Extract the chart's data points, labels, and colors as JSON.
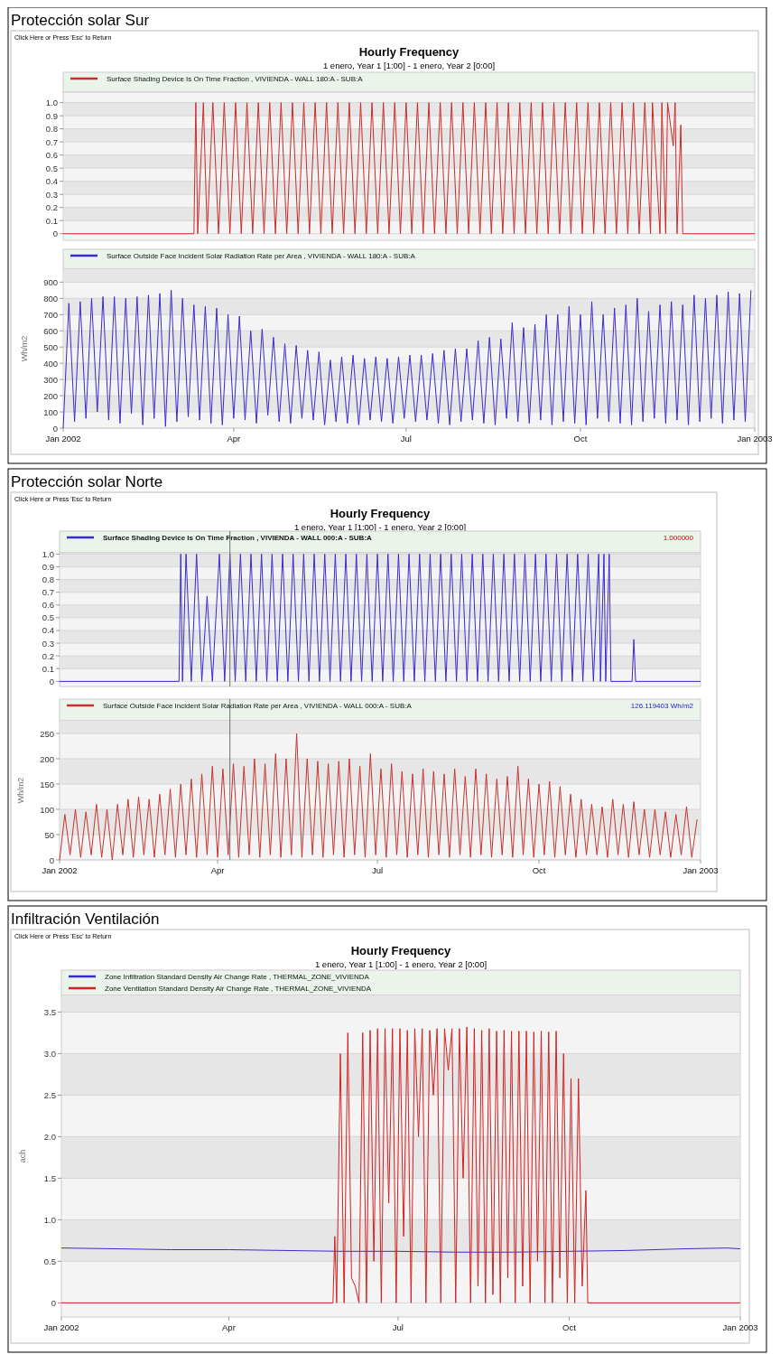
{
  "chart_data": [
    {
      "type": "line",
      "title": "Hourly Frequency",
      "subtitle": "1 enero, Year 1 [1:00] - 1 enero, Year 2 [0:00]",
      "annotations": [
        "Protección solar Sur",
        "Click Here or Press 'Esc' to Return"
      ],
      "legend": "top",
      "grid": "y",
      "tick_labels": "y",
      "xlim": [
        "2002-01-01",
        "2003-01-01"
      ],
      "ylim": [
        -0.05,
        1.08
      ],
      "yticks": [
        0,
        0.1,
        0.2,
        0.3,
        0.4,
        0.5,
        0.6,
        0.7,
        0.8,
        0.9,
        {
          "value": 1,
          "label": "1.0"
        }
      ],
      "series": [
        {
          "name": "Surface Shading Device Is On Time Fraction , VIVIENDA - WALL 180:A - SUB:A",
          "color": "#cc2a2a",
          "x": [
            "2002-01-01",
            "2002-03-11",
            "2002-03-12",
            "2002-03-13",
            "2002-03-16",
            "2002-03-18",
            "2002-03-21",
            "2002-03-24",
            "2002-03-27",
            "2002-03-30",
            "2002-04-02",
            "2002-04-05",
            "2002-04-08",
            "2002-04-11",
            "2002-04-14",
            "2002-04-17",
            "2002-04-20",
            "2002-04-23",
            "2002-04-26",
            "2002-04-29",
            "2002-05-02",
            "2002-05-05",
            "2002-05-08",
            "2002-05-11",
            "2002-05-14",
            "2002-05-17",
            "2002-05-20",
            "2002-05-23",
            "2002-05-26",
            "2002-05-29",
            "2002-06-01",
            "2002-06-04",
            "2002-06-07",
            "2002-06-10",
            "2002-06-13",
            "2002-06-16",
            "2002-06-19",
            "2002-06-22",
            "2002-06-25",
            "2002-06-28",
            "2002-07-01",
            "2002-07-04",
            "2002-07-07",
            "2002-07-10",
            "2002-07-13",
            "2002-07-16",
            "2002-07-19",
            "2002-07-22",
            "2002-07-25",
            "2002-07-28",
            "2002-07-31",
            "2002-08-03",
            "2002-08-06",
            "2002-08-09",
            "2002-08-12",
            "2002-08-15",
            "2002-08-18",
            "2002-08-21",
            "2002-08-24",
            "2002-08-27",
            "2002-08-30",
            "2002-09-02",
            "2002-09-05",
            "2002-09-08",
            "2002-09-11",
            "2002-09-14",
            "2002-09-17",
            "2002-09-20",
            "2002-09-23",
            "2002-09-26",
            "2002-09-29",
            "2002-10-02",
            "2002-10-05",
            "2002-10-08",
            "2002-10-11",
            "2002-10-14",
            "2002-10-17",
            "2002-10-20",
            "2002-10-23",
            "2002-10-26",
            "2002-10-29",
            "2002-11-01",
            "2002-11-04",
            "2002-11-07",
            "2002-11-08",
            "2002-11-12",
            "2002-11-13",
            "2002-11-15",
            "2002-11-16",
            "2002-11-19",
            "2002-11-20",
            "2002-11-21",
            "2002-11-23",
            "2002-11-24",
            "2002-11-25",
            "2003-01-01"
          ],
          "values": [
            0,
            0,
            1,
            0,
            1,
            0,
            1,
            0,
            1,
            0,
            1,
            0,
            1,
            0,
            1,
            0,
            1,
            0,
            1,
            0,
            1,
            0,
            1,
            0,
            1,
            0,
            1,
            0,
            1,
            0,
            1,
            0,
            1,
            0,
            1,
            0,
            1,
            0,
            1,
            0,
            1,
            0,
            1,
            0,
            1,
            0,
            1,
            0,
            1,
            0,
            1,
            0,
            1,
            0,
            1,
            0,
            1,
            0,
            1,
            0,
            1,
            0,
            1,
            0,
            1,
            0,
            1,
            0,
            1,
            0,
            1,
            0,
            1,
            0,
            1,
            0,
            1,
            0,
            1,
            0,
            1,
            0,
            1,
            0,
            1,
            0,
            1,
            0,
            1,
            0.67,
            1,
            0,
            0.83,
            0,
            0,
            0
          ]
        }
      ]
    },
    {
      "type": "line",
      "ylabel": "Wh/m2",
      "legend": "top",
      "grid": "y",
      "xlim": [
        "2002-01-01",
        "2003-01-01"
      ],
      "ylim": [
        0,
        980
      ],
      "yticks": [
        0,
        100,
        200,
        300,
        400,
        500,
        600,
        700,
        800,
        900
      ],
      "xticks": [
        {
          "value": "2002-01-01",
          "label": "Jan 2002"
        },
        {
          "value": "2002-04-01",
          "label": "Apr"
        },
        {
          "value": "2002-07-01",
          "label": "Jul"
        },
        {
          "value": "2002-10-01",
          "label": "Oct"
        },
        {
          "value": "2003-01-01",
          "label": "Jan 2003"
        }
      ],
      "x": [
        "2002-01-01",
        "2002-01-04",
        "2002-01-07",
        "2002-01-10",
        "2002-01-13",
        "2002-01-16",
        "2002-01-19",
        "2002-01-22",
        "2002-01-25",
        "2002-01-28",
        "2002-01-31",
        "2002-02-03",
        "2002-02-06",
        "2002-02-09",
        "2002-02-12",
        "2002-02-15",
        "2002-02-18",
        "2002-02-21",
        "2002-02-24",
        "2002-02-27",
        "2002-03-02",
        "2002-03-05",
        "2002-03-08",
        "2002-03-11",
        "2002-03-14",
        "2002-03-17",
        "2002-03-20",
        "2002-03-23",
        "2002-03-26",
        "2002-03-29",
        "2002-04-01",
        "2002-04-04",
        "2002-04-07",
        "2002-04-10",
        "2002-04-13",
        "2002-04-16",
        "2002-04-19",
        "2002-04-22",
        "2002-04-25",
        "2002-04-28",
        "2002-05-01",
        "2002-05-04",
        "2002-05-07",
        "2002-05-10",
        "2002-05-13",
        "2002-05-16",
        "2002-05-19",
        "2002-05-22",
        "2002-05-25",
        "2002-05-28",
        "2002-05-31",
        "2002-06-03",
        "2002-06-06",
        "2002-06-09",
        "2002-06-12",
        "2002-06-15",
        "2002-06-18",
        "2002-06-21",
        "2002-06-24",
        "2002-06-27",
        "2002-06-30",
        "2002-07-03",
        "2002-07-06",
        "2002-07-09",
        "2002-07-12",
        "2002-07-15",
        "2002-07-18",
        "2002-07-21",
        "2002-07-24",
        "2002-07-27",
        "2002-07-30",
        "2002-08-02",
        "2002-08-05",
        "2002-08-08",
        "2002-08-11",
        "2002-08-14",
        "2002-08-17",
        "2002-08-20",
        "2002-08-23",
        "2002-08-26",
        "2002-08-29",
        "2002-09-01",
        "2002-09-04",
        "2002-09-07",
        "2002-09-10",
        "2002-09-13",
        "2002-09-16",
        "2002-09-19",
        "2002-09-22",
        "2002-09-25",
        "2002-09-28",
        "2002-10-01",
        "2002-10-04",
        "2002-10-07",
        "2002-10-10",
        "2002-10-13",
        "2002-10-16",
        "2002-10-19",
        "2002-10-22",
        "2002-10-25",
        "2002-10-28",
        "2002-10-31",
        "2002-11-03",
        "2002-11-06",
        "2002-11-09",
        "2002-11-12",
        "2002-11-15",
        "2002-11-18",
        "2002-11-21",
        "2002-11-24",
        "2002-11-27",
        "2002-11-30",
        "2002-12-03",
        "2002-12-06",
        "2002-12-09",
        "2002-12-12",
        "2002-12-15",
        "2002-12-18",
        "2002-12-21",
        "2002-12-24",
        "2002-12-27",
        "2002-12-30"
      ],
      "series": [
        {
          "name": "Surface Outside Face Incident Solar Radiation Rate per Area , VIVIENDA - WALL 180:A - SUB:A",
          "color": "#3a2ad0",
          "values": [
            0,
            770,
            40,
            780,
            60,
            800,
            100,
            810,
            50,
            810,
            30,
            800,
            90,
            810,
            20,
            820,
            60,
            830,
            10,
            850,
            40,
            800,
            70,
            760,
            50,
            750,
            30,
            740,
            20,
            700,
            60,
            690,
            50,
            600,
            30,
            610,
            80,
            560,
            40,
            520,
            30,
            510,
            60,
            480,
            50,
            470,
            20,
            420,
            40,
            440,
            30,
            450,
            20,
            430,
            50,
            440,
            40,
            430,
            30,
            440,
            60,
            450,
            40,
            450,
            50,
            460,
            30,
            480,
            20,
            490,
            40,
            490,
            50,
            540,
            30,
            560,
            20,
            550,
            60,
            650,
            40,
            620,
            30,
            640,
            50,
            700,
            20,
            700,
            40,
            750,
            30,
            700,
            20,
            780,
            60,
            700,
            40,
            740,
            30,
            760,
            20,
            800,
            40,
            720,
            60,
            760,
            30,
            780,
            50,
            760,
            20,
            820,
            40,
            800,
            60,
            820,
            30,
            840,
            50,
            830,
            40,
            850
          ]
        }
      ]
    },
    {
      "type": "line",
      "title": "Hourly Frequency",
      "subtitle": "1 enero, Year 1 [1:00] - 1 enero, Year 2 [0:00]",
      "annotations": [
        "Protección solar Norte",
        "Click Here or Press 'Esc' to Return",
        "1.000000"
      ],
      "legend": "top",
      "grid": "y",
      "tick_labels": "y",
      "xlim": [
        "2002-01-01",
        "2003-01-01"
      ],
      "ylim": [
        -0.04,
        1.01
      ],
      "yticks": [
        0,
        0.1,
        0.2,
        0.3,
        0.4,
        0.5,
        0.6,
        0.7,
        0.8,
        0.9,
        {
          "value": 1,
          "label": "1.0"
        }
      ],
      "ref_lines": [
        {
          "axis": "x",
          "value": "2002-04-08",
          "color": "#707070"
        }
      ],
      "series": [
        {
          "name": "Surface Shading Device Is On Time Fraction , VIVIENDA - WALL 000:A - SUB:A",
          "color": "#3a2ad0",
          "x": [
            "2002-01-01",
            "2002-03-10",
            "2002-03-11",
            "2002-03-12",
            "2002-03-14",
            "2002-03-17",
            "2002-03-20",
            "2002-03-23",
            "2002-03-26",
            "2002-03-29",
            "2002-04-02",
            "2002-04-05",
            "2002-04-08",
            "2002-04-11",
            "2002-04-14",
            "2002-04-17",
            "2002-04-20",
            "2002-04-23",
            "2002-04-26",
            "2002-04-29",
            "2002-05-02",
            "2002-05-05",
            "2002-05-08",
            "2002-05-11",
            "2002-05-14",
            "2002-05-17",
            "2002-05-20",
            "2002-05-23",
            "2002-05-26",
            "2002-05-29",
            "2002-06-01",
            "2002-06-04",
            "2002-06-07",
            "2002-06-10",
            "2002-06-13",
            "2002-06-16",
            "2002-06-19",
            "2002-06-22",
            "2002-06-25",
            "2002-06-28",
            "2002-07-01",
            "2002-07-04",
            "2002-07-07",
            "2002-07-10",
            "2002-07-13",
            "2002-07-16",
            "2002-07-19",
            "2002-07-22",
            "2002-07-25",
            "2002-07-28",
            "2002-07-31",
            "2002-08-03",
            "2002-08-06",
            "2002-08-09",
            "2002-08-12",
            "2002-08-15",
            "2002-08-18",
            "2002-08-21",
            "2002-08-24",
            "2002-08-27",
            "2002-08-30",
            "2002-09-02",
            "2002-09-05",
            "2002-09-08",
            "2002-09-11",
            "2002-09-14",
            "2002-09-17",
            "2002-09-20",
            "2002-09-23",
            "2002-09-26",
            "2002-09-29",
            "2002-10-02",
            "2002-10-05",
            "2002-10-08",
            "2002-10-11",
            "2002-10-14",
            "2002-10-17",
            "2002-10-20",
            "2002-10-23",
            "2002-10-26",
            "2002-10-29",
            "2002-11-01",
            "2002-11-04",
            "2002-11-05",
            "2002-11-07",
            "2002-11-08",
            "2002-11-10",
            "2002-11-11",
            "2002-11-23",
            "2002-11-24",
            "2002-11-25",
            "2003-01-01"
          ],
          "values": [
            0,
            0,
            1,
            0,
            1,
            0,
            1,
            0,
            0.67,
            0,
            1,
            0,
            1,
            0,
            1,
            0,
            1,
            0,
            1,
            0,
            1,
            0,
            1,
            0,
            1,
            0,
            1,
            0,
            1,
            0,
            1,
            0,
            1,
            0,
            1,
            0,
            1,
            0,
            1,
            0,
            1,
            0,
            1,
            0,
            1,
            0,
            1,
            0,
            1,
            0,
            1,
            0,
            1,
            0,
            1,
            0,
            1,
            0,
            1,
            0,
            1,
            0,
            1,
            0,
            1,
            0,
            1,
            0,
            1,
            0,
            1,
            0,
            1,
            0,
            1,
            0,
            1,
            0,
            1,
            0,
            1,
            0,
            1,
            0,
            1,
            0,
            1,
            0,
            0,
            0.33,
            0,
            0
          ]
        }
      ]
    },
    {
      "type": "line",
      "ylabel": "Wh/m2",
      "legend": "top",
      "grid": "y",
      "annotations": [
        "126.119403 Wh/m2"
      ],
      "xlim": [
        "2002-01-01",
        "2003-01-01"
      ],
      "ylim": [
        0,
        275
      ],
      "yticks": [
        0,
        50,
        100,
        150,
        200,
        250
      ],
      "xticks": [
        {
          "value": "2002-01-01",
          "label": "Jan 2002"
        },
        {
          "value": "2002-04-01",
          "label": "Apr"
        },
        {
          "value": "2002-07-01",
          "label": "Jul"
        },
        {
          "value": "2002-10-01",
          "label": "Oct"
        },
        {
          "value": "2003-01-01",
          "label": "Jan 2003"
        }
      ],
      "ref_lines": [
        {
          "axis": "x",
          "value": "2002-04-08",
          "color": "#707070"
        }
      ],
      "x": [
        "2002-01-01",
        "2002-01-04",
        "2002-01-07",
        "2002-01-10",
        "2002-01-13",
        "2002-01-16",
        "2002-01-19",
        "2002-01-22",
        "2002-01-25",
        "2002-01-28",
        "2002-01-31",
        "2002-02-03",
        "2002-02-06",
        "2002-02-09",
        "2002-02-12",
        "2002-02-15",
        "2002-02-18",
        "2002-02-21",
        "2002-02-24",
        "2002-02-27",
        "2002-03-02",
        "2002-03-05",
        "2002-03-08",
        "2002-03-11",
        "2002-03-14",
        "2002-03-17",
        "2002-03-20",
        "2002-03-23",
        "2002-03-26",
        "2002-03-29",
        "2002-04-01",
        "2002-04-04",
        "2002-04-07",
        "2002-04-10",
        "2002-04-13",
        "2002-04-16",
        "2002-04-19",
        "2002-04-22",
        "2002-04-25",
        "2002-04-28",
        "2002-05-01",
        "2002-05-04",
        "2002-05-07",
        "2002-05-10",
        "2002-05-13",
        "2002-05-16",
        "2002-05-19",
        "2002-05-22",
        "2002-05-25",
        "2002-05-28",
        "2002-05-31",
        "2002-06-03",
        "2002-06-06",
        "2002-06-09",
        "2002-06-12",
        "2002-06-15",
        "2002-06-18",
        "2002-06-21",
        "2002-06-24",
        "2002-06-27",
        "2002-06-30",
        "2002-07-03",
        "2002-07-06",
        "2002-07-09",
        "2002-07-12",
        "2002-07-15",
        "2002-07-18",
        "2002-07-21",
        "2002-07-24",
        "2002-07-27",
        "2002-07-30",
        "2002-08-02",
        "2002-08-05",
        "2002-08-08",
        "2002-08-11",
        "2002-08-14",
        "2002-08-17",
        "2002-08-20",
        "2002-08-23",
        "2002-08-26",
        "2002-08-29",
        "2002-09-01",
        "2002-09-04",
        "2002-09-07",
        "2002-09-10",
        "2002-09-13",
        "2002-09-16",
        "2002-09-19",
        "2002-09-22",
        "2002-09-25",
        "2002-09-28",
        "2002-10-01",
        "2002-10-04",
        "2002-10-07",
        "2002-10-10",
        "2002-10-13",
        "2002-10-16",
        "2002-10-19",
        "2002-10-22",
        "2002-10-25",
        "2002-10-28",
        "2002-10-31",
        "2002-11-03",
        "2002-11-06",
        "2002-11-09",
        "2002-11-12",
        "2002-11-15",
        "2002-11-18",
        "2002-11-21",
        "2002-11-24",
        "2002-11-27",
        "2002-11-30",
        "2002-12-03",
        "2002-12-06",
        "2002-12-09",
        "2002-12-12",
        "2002-12-15",
        "2002-12-18",
        "2002-12-21",
        "2002-12-24",
        "2002-12-27",
        "2002-12-30"
      ],
      "series": [
        {
          "name": "Surface Outside Face Incident Solar Radiation Rate per Area , VIVIENDA - WALL 000:A - SUB:A",
          "color": "#c83232",
          "values": [
            0,
            90,
            10,
            100,
            5,
            95,
            10,
            110,
            5,
            100,
            0,
            110,
            10,
            120,
            5,
            125,
            10,
            120,
            5,
            130,
            10,
            140,
            5,
            150,
            10,
            160,
            5,
            170,
            10,
            185,
            5,
            180,
            10,
            190,
            5,
            185,
            10,
            200,
            5,
            190,
            10,
            210,
            5,
            200,
            10,
            250,
            5,
            200,
            10,
            195,
            5,
            190,
            10,
            195,
            5,
            200,
            10,
            185,
            5,
            210,
            10,
            180,
            5,
            190,
            10,
            175,
            5,
            170,
            10,
            180,
            5,
            175,
            10,
            170,
            5,
            180,
            10,
            165,
            5,
            180,
            10,
            170,
            5,
            160,
            10,
            165,
            5,
            185,
            10,
            160,
            5,
            150,
            10,
            155,
            5,
            145,
            10,
            130,
            5,
            120,
            10,
            110,
            10,
            105,
            5,
            120,
            10,
            110,
            5,
            115,
            10,
            100,
            5,
            100,
            10,
            95,
            5,
            90,
            10,
            105,
            5,
            80
          ]
        }
      ]
    },
    {
      "type": "line",
      "title": "Hourly Frequency",
      "subtitle": "1 enero, Year 1 [1:00] - 1 enero, Year 2 [0:00]",
      "annotations": [
        "Infiltración Ventilación",
        "Click Here or Press 'Esc' to Return"
      ],
      "ylabel": "ach",
      "legend": "top",
      "grid": "y",
      "xlim": [
        "2002-01-01",
        "2003-01-01"
      ],
      "ylim": [
        -0.17,
        3.7
      ],
      "yticks": [
        0,
        0.5,
        {
          "value": 1,
          "label": "1.0"
        },
        1.5,
        {
          "value": 2,
          "label": "2.0"
        },
        2.5,
        {
          "value": 3,
          "label": "3.0"
        },
        3.5
      ],
      "xticks": [
        {
          "value": "2002-01-01",
          "label": "Jan 2002"
        },
        {
          "value": "2002-04-01",
          "label": "Apr"
        },
        {
          "value": "2002-07-01",
          "label": "Jul"
        },
        {
          "value": "2002-10-01",
          "label": "Oct"
        },
        {
          "value": "2003-01-01",
          "label": "Jan 2003"
        }
      ],
      "series": [
        {
          "name": "Zone Infiltration Standard Density Air Change Rate , THERMAL_ZONE_VIVIENDA",
          "color": "#3a2ad0",
          "x": [
            "2002-01-01",
            "2002-02-01",
            "2002-03-01",
            "2002-04-01",
            "2002-05-01",
            "2002-06-01",
            "2002-07-01",
            "2002-08-01",
            "2002-09-01",
            "2002-10-01",
            "2002-11-01",
            "2002-12-01",
            "2002-12-25",
            "2003-01-01"
          ],
          "values": [
            0.66,
            0.65,
            0.64,
            0.64,
            0.63,
            0.62,
            0.62,
            0.61,
            0.61,
            0.62,
            0.63,
            0.65,
            0.66,
            0.65
          ]
        },
        {
          "name": "Zone Ventilation Standard Density Air Change Rate , THERMAL_ZONE_VIVIENDA",
          "color": "#d42020",
          "x": [
            "2002-01-01",
            "2002-05-27",
            "2002-05-28",
            "2002-05-29",
            "2002-05-31",
            "2002-06-02",
            "2002-06-04",
            "2002-06-06",
            "2002-06-08",
            "2002-06-10",
            "2002-06-12",
            "2002-06-14",
            "2002-06-16",
            "2002-06-18",
            "2002-06-20",
            "2002-06-22",
            "2002-06-24",
            "2002-06-26",
            "2002-06-28",
            "2002-06-30",
            "2002-07-02",
            "2002-07-04",
            "2002-07-06",
            "2002-07-08",
            "2002-07-10",
            "2002-07-12",
            "2002-07-14",
            "2002-07-16",
            "2002-07-18",
            "2002-07-20",
            "2002-07-22",
            "2002-07-24",
            "2002-07-26",
            "2002-07-28",
            "2002-07-30",
            "2002-08-01",
            "2002-08-03",
            "2002-08-05",
            "2002-08-07",
            "2002-08-09",
            "2002-08-11",
            "2002-08-13",
            "2002-08-15",
            "2002-08-17",
            "2002-08-19",
            "2002-08-21",
            "2002-08-23",
            "2002-08-25",
            "2002-08-27",
            "2002-08-29",
            "2002-08-31",
            "2002-09-02",
            "2002-09-04",
            "2002-09-06",
            "2002-09-08",
            "2002-09-10",
            "2002-09-12",
            "2002-09-14",
            "2002-09-16",
            "2002-09-18",
            "2002-09-20",
            "2002-09-22",
            "2002-09-24",
            "2002-09-26",
            "2002-09-28",
            "2002-09-30",
            "2002-10-02",
            "2002-10-04",
            "2002-10-06",
            "2002-10-08",
            "2002-10-10",
            "2002-10-11",
            "2003-01-01"
          ],
          "values": [
            0,
            0,
            0.8,
            0,
            3.0,
            0,
            3.25,
            0.3,
            0.2,
            0,
            3.25,
            0,
            3.28,
            0.5,
            3.3,
            0,
            3.3,
            1.2,
            3.3,
            0,
            3.3,
            0.8,
            3.28,
            0,
            3.3,
            2.0,
            3.3,
            0,
            3.28,
            2.5,
            3.3,
            0,
            3.3,
            2.8,
            3.3,
            0,
            3.3,
            1.5,
            3.32,
            0,
            3.3,
            0.2,
            3.28,
            0,
            3.3,
            0.1,
            3.27,
            0,
            3.28,
            0.3,
            3.27,
            0,
            3.27,
            0.2,
            3.27,
            0,
            3.26,
            0.5,
            3.27,
            0,
            3.26,
            0,
            3.27,
            0.3,
            3.0,
            0,
            2.7,
            0,
            2.7,
            0.2,
            1.35,
            0,
            0
          ]
        }
      ]
    }
  ]
}
